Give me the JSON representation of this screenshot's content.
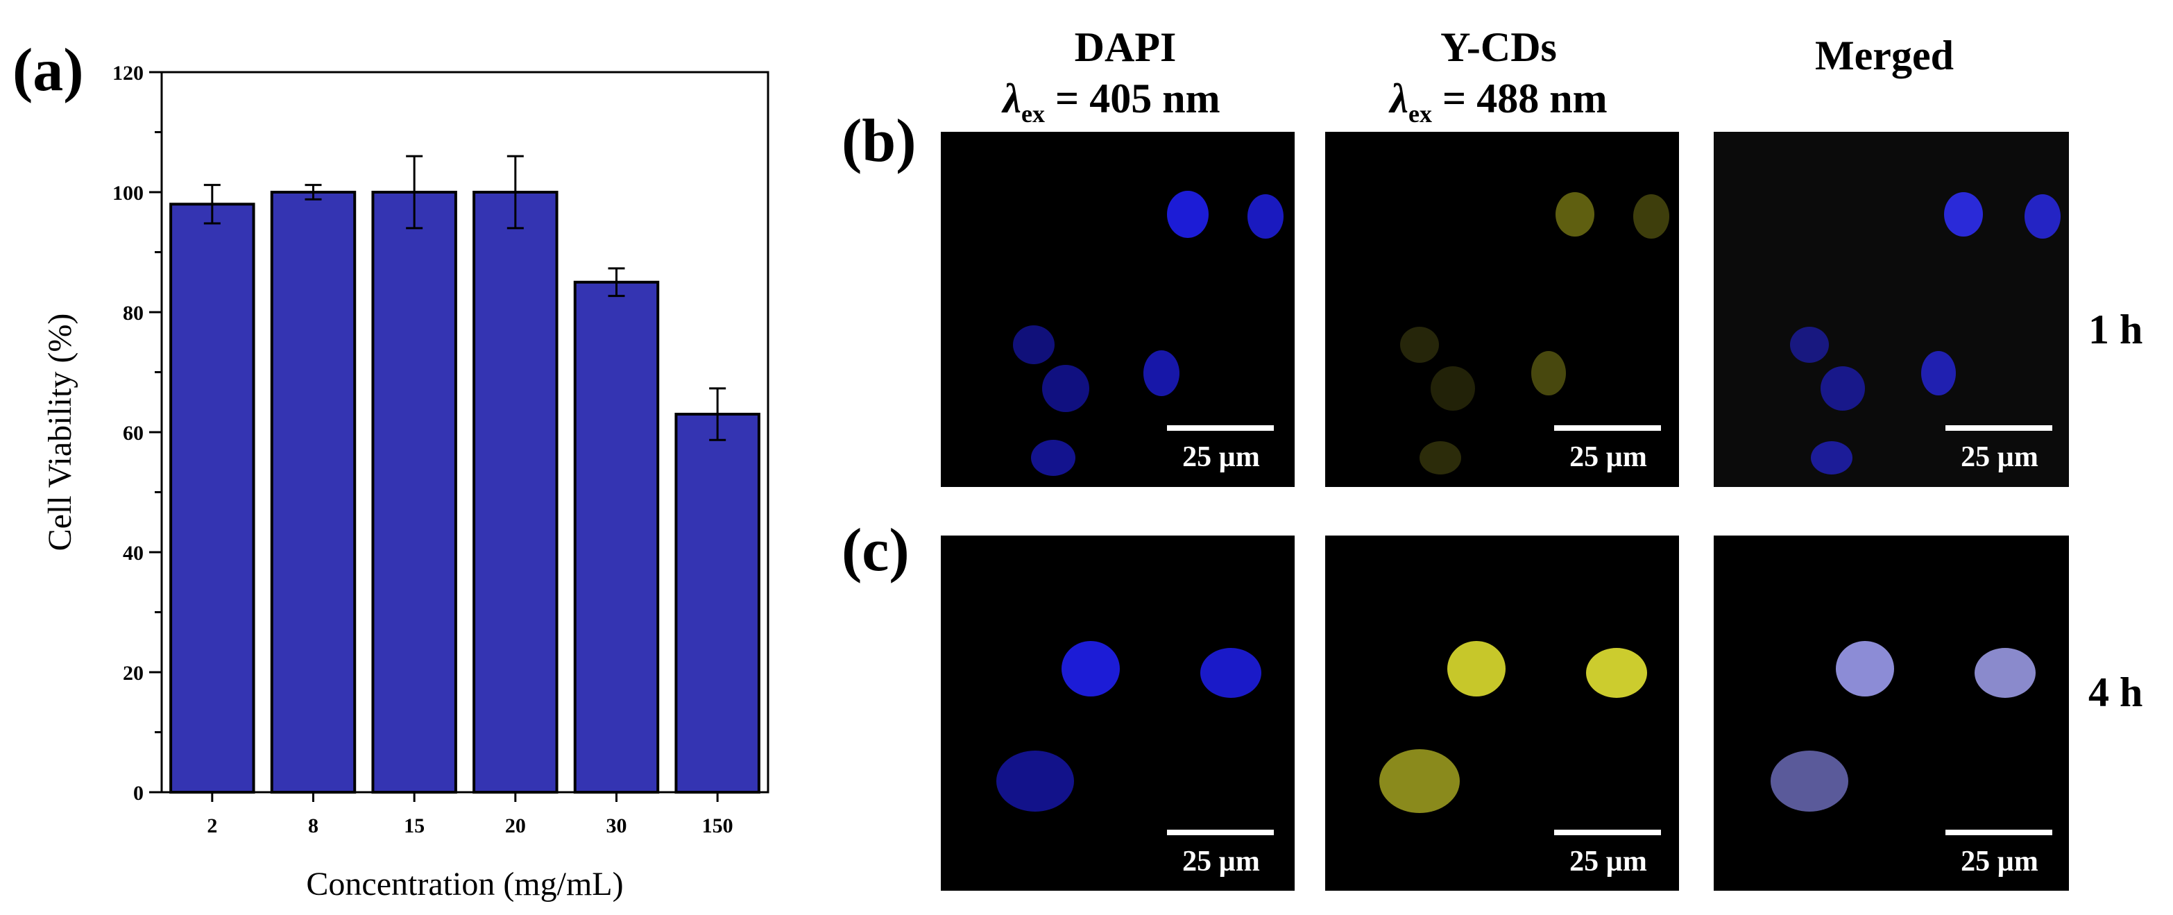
{
  "panel_labels": {
    "a": "(a)",
    "b": "(b)",
    "c": "(c)"
  },
  "chart_data": {
    "type": "bar",
    "categories": [
      "2",
      "8",
      "15",
      "20",
      "30",
      "150"
    ],
    "values": [
      98,
      100,
      100,
      100,
      85,
      63
    ],
    "errors": [
      3.2,
      1.2,
      6,
      6,
      2.3,
      4.3
    ],
    "xlabel": "Concentration (mg/mL)",
    "ylabel": "Cell Viability (%)",
    "ylim": [
      0,
      120
    ],
    "yticks": [
      0,
      20,
      40,
      60,
      80,
      100,
      120
    ],
    "grid": false,
    "bar_color": "#3434b2"
  },
  "micrographs": {
    "columns": [
      {
        "title": "DAPI",
        "symbol": "λ",
        "subscript": "ex",
        "value": " = 405 nm"
      },
      {
        "title": "Y-CDs",
        "symbol": "λ",
        "subscript": "ex",
        "value": " = 488 nm"
      },
      {
        "title": "Merged"
      }
    ],
    "rows": [
      {
        "time": "1 h"
      },
      {
        "time": "4 h"
      }
    ],
    "scale_bar": "25 µm",
    "colors": {
      "dapi": "#1c1cd6",
      "ycds_dim": "#5f5f10",
      "ycds_bright": "#c7c72a",
      "merged_1h": "#2a2ad8",
      "merged_4h": "#8c8cd6"
    }
  }
}
